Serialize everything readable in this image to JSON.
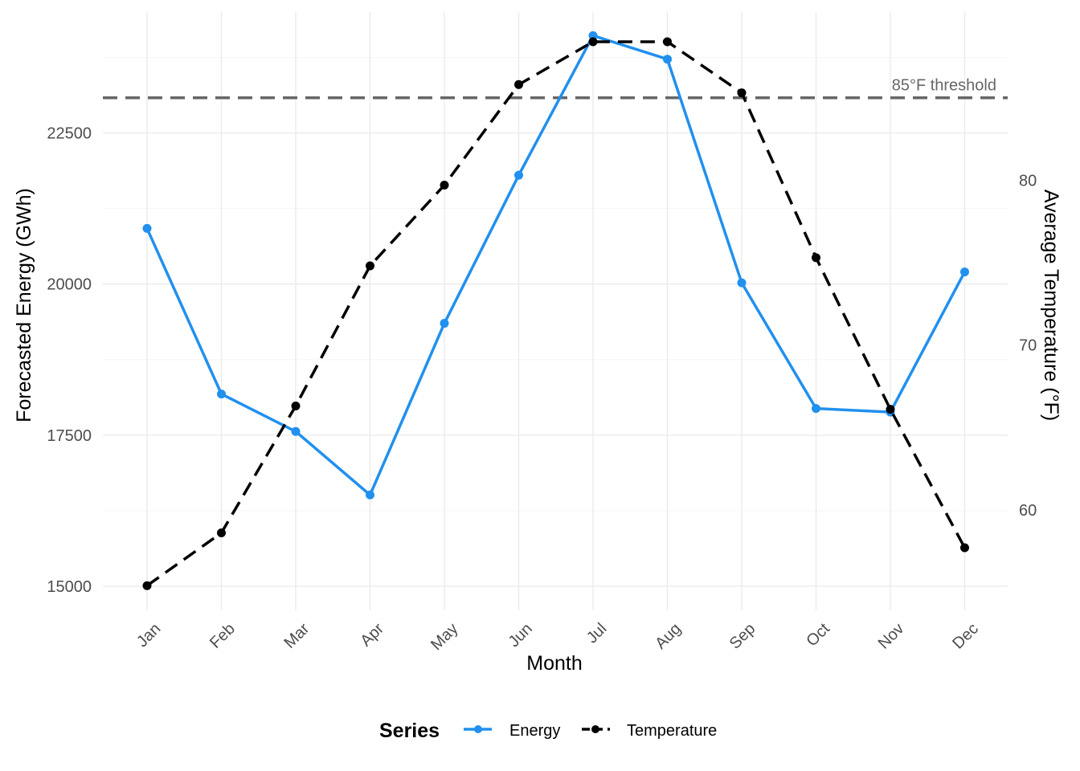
{
  "chart_data": {
    "type": "line",
    "title": "",
    "xlabel": "Month",
    "ylabel": "Forecasted Energy (GWh)",
    "y2label": "Average Temperature (°F)",
    "categories": [
      "Jan",
      "Feb",
      "Mar",
      "Apr",
      "May",
      "Jun",
      "Jul",
      "Aug",
      "Sep",
      "Oct",
      "Nov",
      "Dec"
    ],
    "ylim": [
      14600,
      24500
    ],
    "yticks": [
      15000,
      17500,
      20000,
      22500
    ],
    "y2lim": [
      53.9,
      90.2
    ],
    "y2ticks": [
      60,
      70,
      80
    ],
    "series": [
      {
        "name": "Energy",
        "axis": "left",
        "color": "#2190ee",
        "line_style": "solid",
        "values": [
          20920,
          18180,
          17560,
          16510,
          19350,
          21800,
          24110,
          23720,
          20020,
          17940,
          17880,
          20200
        ]
      },
      {
        "name": "Temperature",
        "axis": "right",
        "color": "#000000",
        "line_style": "dashed",
        "values": [
          55.4,
          58.6,
          66.3,
          74.8,
          79.7,
          85.8,
          88.4,
          88.4,
          85.3,
          75.3,
          66.1,
          57.7
        ]
      }
    ],
    "threshold": {
      "axis": "right",
      "value": 85,
      "label": "85°F threshold",
      "color": "#666666",
      "line_style": "dashed"
    },
    "grid": true,
    "legend": {
      "title": "Series",
      "position": "bottom",
      "entries": [
        "Energy",
        "Temperature"
      ]
    }
  }
}
